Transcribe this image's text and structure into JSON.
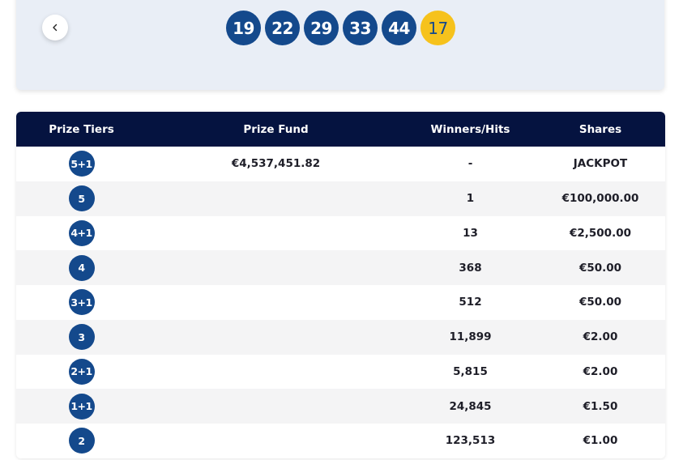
{
  "draw": {
    "numbers": [
      "19",
      "22",
      "29",
      "33",
      "44"
    ],
    "bonus": "17"
  },
  "table": {
    "headers": {
      "tier": "Prize Tiers",
      "fund": "Prize Fund",
      "winners": "Winners/Hits",
      "shares": "Shares"
    },
    "rows": [
      {
        "tier": "5+1",
        "fund": "€4,537,451.82",
        "winners": "-",
        "shares": "JACKPOT"
      },
      {
        "tier": "5",
        "fund": "",
        "winners": "1",
        "shares": "€100,000.00"
      },
      {
        "tier": "4+1",
        "fund": "",
        "winners": "13",
        "shares": "€2,500.00"
      },
      {
        "tier": "4",
        "fund": "",
        "winners": "368",
        "shares": "€50.00"
      },
      {
        "tier": "3+1",
        "fund": "",
        "winners": "512",
        "shares": "€50.00"
      },
      {
        "tier": "3",
        "fund": "",
        "winners": "11,899",
        "shares": "€2.00"
      },
      {
        "tier": "2+1",
        "fund": "",
        "winners": "5,815",
        "shares": "€2.00"
      },
      {
        "tier": "1+1",
        "fund": "",
        "winners": "24,845",
        "shares": "€1.50"
      },
      {
        "tier": "2",
        "fund": "",
        "winners": "123,513",
        "shares": "€1.00"
      }
    ]
  },
  "colors": {
    "ball": "#14498c",
    "bonus_ball": "#f6c21c",
    "header_bg": "#051340"
  },
  "icons": {
    "back": "chevron-left-icon"
  }
}
